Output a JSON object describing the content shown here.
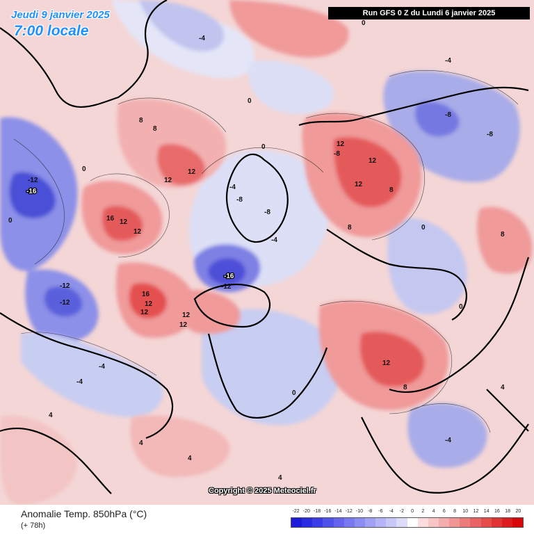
{
  "header": {
    "date": "Jeudi 9 janvier 2025",
    "time": "7:00 locale",
    "run": "Run GFS 0 Z du Lundi 6 janvier 2025"
  },
  "map": {
    "copyright": "Copyright © 2025 Meteociel.fr",
    "colors": {
      "cold_strong": "#3c3cd8",
      "cold": "#8c8ce8",
      "cool": "#c8cdf2",
      "neutral": "#f4f4f8",
      "warm_light": "#f6d0d0",
      "warm": "#f09a9a",
      "hot": "#e45050"
    },
    "labels_cold": [
      "-16",
      "-12",
      "-12",
      "-16",
      "-12",
      "-12",
      "-8",
      "-8",
      "-4",
      "-4",
      "-8",
      "-4",
      "-8",
      "-4",
      "-4",
      "-4",
      "-8",
      "-4"
    ],
    "labels_warm": [
      "16",
      "12",
      "12",
      "16",
      "12",
      "12",
      "12",
      "12",
      "12",
      "12",
      "8",
      "12",
      "12",
      "8",
      "12",
      "8",
      "8",
      "4",
      "4",
      "4",
      "8",
      "4",
      "4",
      "8",
      "12"
    ],
    "labels_zero": [
      "0",
      "0",
      "0",
      "0",
      "0",
      "0",
      "0",
      "0"
    ]
  },
  "footer": {
    "title": "Anomalie Temp. 850hPa (°C)",
    "subtitle": "(+ 78h)",
    "legend": {
      "ticks": [
        "-22",
        "-20",
        "-18",
        "-16",
        "-14",
        "-12",
        "-10",
        "-8",
        "-6",
        "-4",
        "-2",
        "0",
        "2",
        "4",
        "6",
        "8",
        "10",
        "12",
        "14",
        "16",
        "18",
        "20"
      ],
      "colors": [
        "#1a1ad8",
        "#2a2ae0",
        "#3c3ce6",
        "#5050ea",
        "#6464ee",
        "#7878f0",
        "#8c8cf2",
        "#a0a0f4",
        "#b4b4f6",
        "#c8c8f8",
        "#dcdcfa",
        "#ffffff",
        "#fcdcdc",
        "#f8c4c4",
        "#f4acac",
        "#f09494",
        "#ec7c7c",
        "#e86464",
        "#e44c4c",
        "#e03434",
        "#dc1c1c",
        "#d80808"
      ]
    }
  }
}
